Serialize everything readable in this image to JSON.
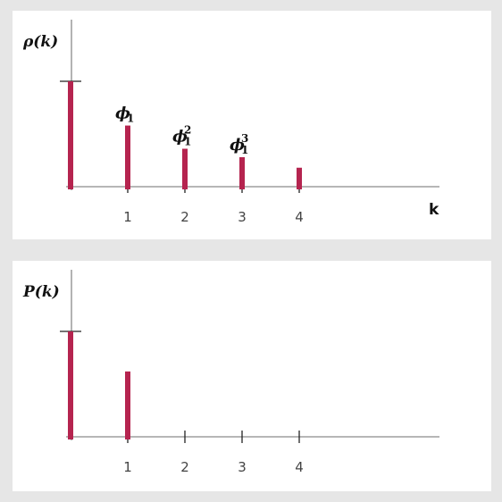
{
  "chart_data": [
    {
      "type": "bar",
      "name": "acf",
      "ylabel": "ρ(k)",
      "xlabel": "k",
      "x": [
        0,
        1,
        2,
        3,
        4
      ],
      "tick_labels": [
        "1",
        "2",
        "3",
        "4"
      ],
      "tick_values": [
        1,
        2,
        3,
        4
      ],
      "values": [
        1.0,
        0.58,
        0.36,
        0.28,
        0.18
      ],
      "ylim": [
        0,
        1
      ],
      "grid": false,
      "annotations": [
        {
          "x": 1,
          "base": "ϕ",
          "sub": "1",
          "sup": ""
        },
        {
          "x": 2,
          "base": "ϕ",
          "sub": "1",
          "sup": "2"
        },
        {
          "x": 3,
          "base": "ϕ",
          "sub": "1",
          "sup": "3"
        }
      ]
    },
    {
      "type": "bar",
      "name": "pacf",
      "ylabel": "P(k)",
      "xlabel": "",
      "x": [
        0,
        1
      ],
      "tick_labels": [
        "1",
        "2",
        "3",
        "4"
      ],
      "tick_values": [
        1,
        2,
        3,
        4
      ],
      "values": [
        1.0,
        0.62
      ],
      "ylim": [
        0,
        1
      ],
      "grid": false,
      "annotations": []
    }
  ]
}
